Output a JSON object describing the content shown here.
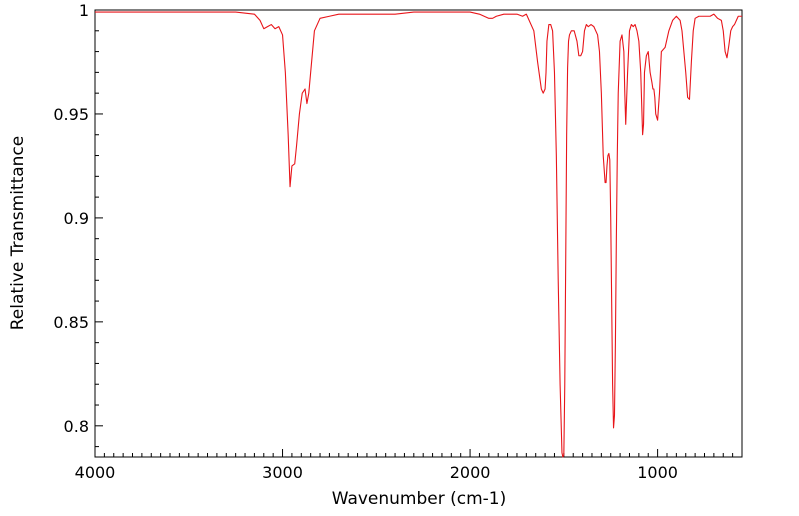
{
  "chart_data": {
    "type": "line",
    "title": "",
    "xlabel": "Wavenumber (cm-1)",
    "ylabel": "Relative Transmittance",
    "x_reversed": true,
    "xlim": [
      4000,
      550
    ],
    "ylim": [
      0.785,
      1.0
    ],
    "x_ticks": [
      {
        "value": 4000,
        "label": "4000"
      },
      {
        "value": 3000,
        "label": "3000"
      },
      {
        "value": 2000,
        "label": "2000"
      },
      {
        "value": 1000,
        "label": "1000"
      }
    ],
    "y_ticks": [
      {
        "value": 1.0,
        "label": "1"
      },
      {
        "value": 0.95,
        "label": "0.95"
      },
      {
        "value": 0.9,
        "label": "0.9"
      },
      {
        "value": 0.85,
        "label": "0.85"
      },
      {
        "value": 0.8,
        "label": "0.8"
      }
    ],
    "grid": false,
    "colors": {
      "series": "#e8151a",
      "axis": "#000000"
    },
    "series": [
      {
        "x": [
          4000,
          3800,
          3600,
          3400,
          3250,
          3150,
          3120,
          3100,
          3080,
          3060,
          3040,
          3020,
          3000,
          2985,
          2970,
          2960,
          2950,
          2935,
          2925,
          2910,
          2895,
          2880,
          2870,
          2860,
          2845,
          2830,
          2800,
          2750,
          2700,
          2600,
          2500,
          2400,
          2300,
          2200,
          2100,
          2000,
          1950,
          1900,
          1880,
          1860,
          1820,
          1780,
          1750,
          1720,
          1700,
          1660,
          1640,
          1620,
          1610,
          1600,
          1595,
          1590,
          1580,
          1570,
          1560,
          1550,
          1540,
          1530,
          1520,
          1510,
          1505,
          1500,
          1495,
          1490,
          1485,
          1480,
          1475,
          1470,
          1460,
          1445,
          1430,
          1420,
          1410,
          1400,
          1390,
          1380,
          1370,
          1355,
          1340,
          1320,
          1310,
          1300,
          1290,
          1280,
          1275,
          1270,
          1265,
          1260,
          1255,
          1250,
          1245,
          1240,
          1235,
          1230,
          1225,
          1220,
          1215,
          1210,
          1200,
          1190,
          1180,
          1175,
          1170,
          1160,
          1150,
          1140,
          1130,
          1120,
          1110,
          1100,
          1090,
          1085,
          1080,
          1075,
          1070,
          1060,
          1050,
          1045,
          1040,
          1030,
          1025,
          1020,
          1015,
          1010,
          1000,
          990,
          980,
          960,
          940,
          920,
          900,
          880,
          870,
          860,
          850,
          840,
          830,
          820,
          810,
          800,
          780,
          760,
          740,
          720,
          700,
          680,
          660,
          650,
          640,
          630,
          620,
          610,
          600,
          590,
          580,
          570,
          560,
          550
        ],
        "y": [
          0.999,
          0.999,
          0.999,
          0.999,
          0.999,
          0.998,
          0.995,
          0.991,
          0.992,
          0.993,
          0.991,
          0.992,
          0.988,
          0.97,
          0.94,
          0.915,
          0.925,
          0.926,
          0.935,
          0.95,
          0.96,
          0.962,
          0.955,
          0.96,
          0.975,
          0.99,
          0.996,
          0.997,
          0.998,
          0.998,
          0.998,
          0.998,
          0.999,
          0.999,
          0.999,
          0.999,
          0.998,
          0.996,
          0.996,
          0.997,
          0.998,
          0.998,
          0.998,
          0.997,
          0.998,
          0.99,
          0.975,
          0.962,
          0.96,
          0.962,
          0.97,
          0.985,
          0.993,
          0.993,
          0.99,
          0.97,
          0.93,
          0.87,
          0.82,
          0.787,
          0.784,
          0.786,
          0.82,
          0.88,
          0.94,
          0.972,
          0.985,
          0.988,
          0.99,
          0.99,
          0.985,
          0.978,
          0.978,
          0.98,
          0.99,
          0.993,
          0.992,
          0.993,
          0.992,
          0.988,
          0.98,
          0.96,
          0.93,
          0.917,
          0.917,
          0.925,
          0.93,
          0.931,
          0.928,
          0.9,
          0.86,
          0.82,
          0.799,
          0.805,
          0.84,
          0.89,
          0.93,
          0.96,
          0.985,
          0.988,
          0.98,
          0.96,
          0.945,
          0.97,
          0.99,
          0.993,
          0.992,
          0.993,
          0.99,
          0.985,
          0.97,
          0.955,
          0.94,
          0.945,
          0.97,
          0.978,
          0.98,
          0.975,
          0.97,
          0.965,
          0.962,
          0.962,
          0.958,
          0.95,
          0.947,
          0.96,
          0.98,
          0.982,
          0.99,
          0.995,
          0.997,
          0.995,
          0.99,
          0.98,
          0.97,
          0.958,
          0.957,
          0.975,
          0.99,
          0.996,
          0.997,
          0.997,
          0.997,
          0.997,
          0.998,
          0.996,
          0.995,
          0.99,
          0.98,
          0.977,
          0.983,
          0.99,
          0.992,
          0.993,
          0.995,
          0.997,
          0.997,
          0.997
        ]
      }
    ]
  }
}
